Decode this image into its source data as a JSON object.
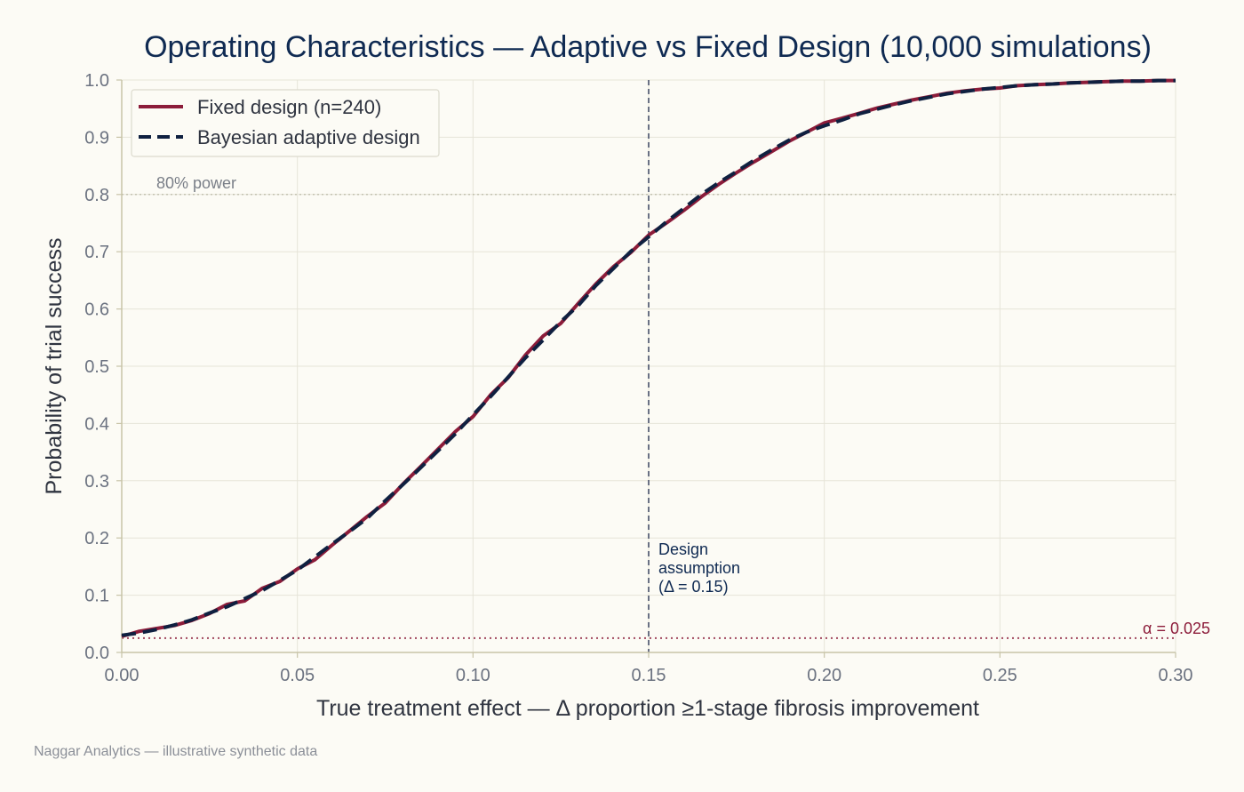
{
  "chart_data": {
    "type": "line",
    "title": "Operating Characteristics — Adaptive vs Fixed Design (10,000 simulations)",
    "xlabel": "True treatment effect — Δ proportion ≥1-stage fibrosis improvement",
    "ylabel": "Probability of trial success",
    "xlim": [
      0.0,
      0.3
    ],
    "ylim": [
      0.0,
      1.0
    ],
    "x_ticks": [
      "0.00",
      "0.05",
      "0.10",
      "0.15",
      "0.20",
      "0.25",
      "0.30"
    ],
    "y_ticks": [
      "0.0",
      "0.1",
      "0.2",
      "0.3",
      "0.4",
      "0.5",
      "0.6",
      "0.7",
      "0.8",
      "0.9",
      "1.0"
    ],
    "grid": true,
    "legend_position": "top-left",
    "x": [
      0.0,
      0.005,
      0.01,
      0.015,
      0.02,
      0.025,
      0.03,
      0.035,
      0.04,
      0.045,
      0.05,
      0.055,
      0.06,
      0.065,
      0.07,
      0.075,
      0.08,
      0.085,
      0.09,
      0.095,
      0.1,
      0.105,
      0.11,
      0.115,
      0.12,
      0.125,
      0.13,
      0.135,
      0.14,
      0.145,
      0.15,
      0.155,
      0.16,
      0.165,
      0.17,
      0.175,
      0.18,
      0.185,
      0.19,
      0.195,
      0.2,
      0.205,
      0.21,
      0.215,
      0.22,
      0.225,
      0.23,
      0.235,
      0.24,
      0.245,
      0.25,
      0.255,
      0.26,
      0.265,
      0.27,
      0.275,
      0.28,
      0.285,
      0.29,
      0.295,
      0.3
    ],
    "series": [
      {
        "name": "Fixed design (n=240)",
        "color": "#8c1c3a",
        "style": "solid",
        "values": [
          0.028,
          0.037,
          0.042,
          0.047,
          0.056,
          0.068,
          0.084,
          0.09,
          0.112,
          0.124,
          0.146,
          0.162,
          0.188,
          0.213,
          0.238,
          0.261,
          0.294,
          0.324,
          0.355,
          0.386,
          0.412,
          0.45,
          0.48,
          0.52,
          0.553,
          0.575,
          0.61,
          0.644,
          0.674,
          0.699,
          0.729,
          0.75,
          0.772,
          0.796,
          0.818,
          0.838,
          0.857,
          0.875,
          0.893,
          0.909,
          0.925,
          0.933,
          0.942,
          0.951,
          0.958,
          0.965,
          0.971,
          0.977,
          0.981,
          0.984,
          0.986,
          0.99,
          0.992,
          0.993,
          0.995,
          0.996,
          0.997,
          0.998,
          0.998,
          0.999,
          0.999
        ]
      },
      {
        "name": "Bayesian adaptive design",
        "color": "#0f2040",
        "style": "dashed",
        "values": [
          0.03,
          0.034,
          0.04,
          0.048,
          0.057,
          0.069,
          0.08,
          0.094,
          0.108,
          0.126,
          0.144,
          0.167,
          0.19,
          0.212,
          0.235,
          0.265,
          0.293,
          0.322,
          0.352,
          0.382,
          0.415,
          0.447,
          0.481,
          0.515,
          0.546,
          0.578,
          0.606,
          0.641,
          0.671,
          0.701,
          0.726,
          0.752,
          0.776,
          0.8,
          0.821,
          0.84,
          0.86,
          0.878,
          0.895,
          0.909,
          0.92,
          0.93,
          0.941,
          0.949,
          0.957,
          0.964,
          0.97,
          0.976,
          0.98,
          0.984,
          0.987,
          0.99,
          0.992,
          0.993,
          0.995,
          0.996,
          0.997,
          0.998,
          0.998,
          0.999,
          0.999
        ]
      }
    ],
    "reference_lines": {
      "power": {
        "y": 0.8,
        "label": "80% power",
        "color": "#b5b5a0"
      },
      "alpha": {
        "y": 0.025,
        "label": "α = 0.025",
        "color": "#8c1c3a"
      },
      "design": {
        "x": 0.15,
        "label_lines": [
          "Design",
          "assumption",
          "(Δ = 0.15)"
        ],
        "color": "#5a6278"
      }
    }
  },
  "footer": "Naggar Analytics — illustrative synthetic data"
}
